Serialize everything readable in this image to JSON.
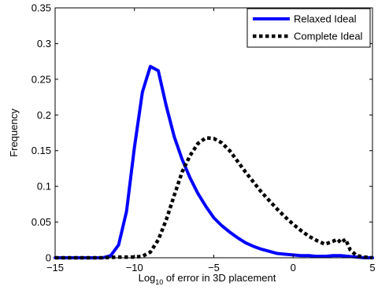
{
  "chart_data": {
    "type": "line",
    "title": "",
    "xlabel": {
      "prefix": "Log",
      "subscript": "10",
      "suffix": " of error in 3D placement"
    },
    "ylabel": "Frequency",
    "xlim": [
      -15,
      5
    ],
    "ylim": [
      0,
      0.35
    ],
    "xticks": [
      -15,
      -10,
      -5,
      0,
      5
    ],
    "xtick_labels": [
      "−15",
      "−10",
      "−5",
      "0",
      "5"
    ],
    "yticks": [
      0,
      0.05,
      0.1,
      0.15,
      0.2,
      0.25,
      0.3,
      0.35
    ],
    "ytick_labels": [
      "0",
      "0.05",
      "0.1",
      "0.15",
      "0.2",
      "0.25",
      "0.3",
      "0.35"
    ],
    "grid": false,
    "legend_position": "top-right",
    "series": [
      {
        "name": "Relaxed Ideal",
        "color": "#0000ff",
        "line_style": "solid",
        "x": [
          -15,
          -14,
          -13,
          -12,
          -11.5,
          -11,
          -10.5,
          -10,
          -9.5,
          -9,
          -8.5,
          -8,
          -7.5,
          -7,
          -6.5,
          -6,
          -5.5,
          -5,
          -4.5,
          -4,
          -3.5,
          -3,
          -2.5,
          -2,
          -1.5,
          -1,
          -0.5,
          0,
          0.5,
          1,
          1.5,
          2,
          2.5,
          3,
          3.5,
          4,
          4.5,
          5
        ],
        "y": [
          0,
          0,
          0,
          0,
          0.003,
          0.018,
          0.065,
          0.155,
          0.232,
          0.268,
          0.262,
          0.213,
          0.17,
          0.138,
          0.112,
          0.09,
          0.072,
          0.056,
          0.045,
          0.036,
          0.028,
          0.021,
          0.016,
          0.012,
          0.009,
          0.006,
          0.005,
          0.004,
          0.003,
          0.003,
          0.002,
          0.002,
          0.003,
          0.003,
          0.002,
          0.001,
          0,
          0
        ]
      },
      {
        "name": "Complete Ideal",
        "color": "#000000",
        "line_style": "dotted",
        "x": [
          -15,
          -14,
          -13,
          -12,
          -11,
          -10,
          -9.5,
          -9,
          -8.5,
          -8,
          -7.5,
          -7,
          -6.5,
          -6,
          -5.5,
          -5,
          -4.5,
          -4,
          -3.5,
          -3,
          -2.5,
          -2,
          -1.5,
          -1,
          -0.5,
          0,
          0.5,
          1,
          1.5,
          2,
          2.5,
          2.8,
          3,
          3.3,
          3.6,
          4,
          4.5,
          5
        ],
        "y": [
          0,
          0,
          0,
          0,
          0.001,
          0.001,
          0.002,
          0.008,
          0.025,
          0.053,
          0.087,
          0.12,
          0.143,
          0.16,
          0.168,
          0.167,
          0.161,
          0.15,
          0.135,
          0.12,
          0.106,
          0.092,
          0.08,
          0.068,
          0.057,
          0.047,
          0.038,
          0.03,
          0.024,
          0.019,
          0.023,
          0.026,
          0.021,
          0.026,
          0.011,
          0.003,
          0.001,
          0
        ]
      }
    ]
  }
}
